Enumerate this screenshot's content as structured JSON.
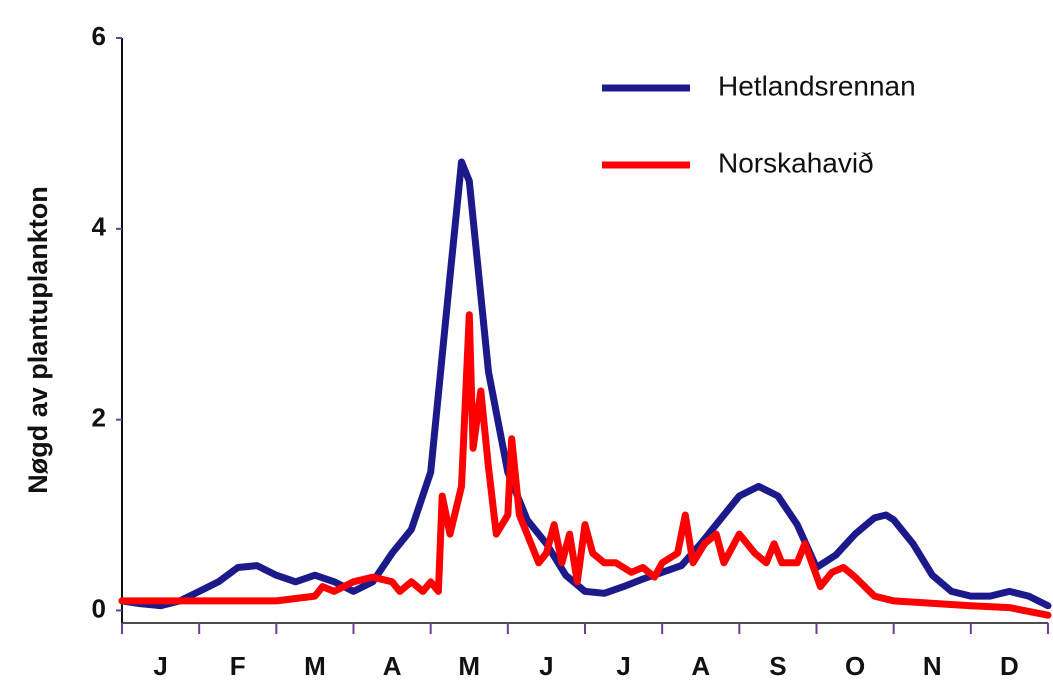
{
  "chart_data": {
    "type": "line",
    "y_label": "Nøgd av plantuplankton",
    "categories": [
      "J",
      "F",
      "M",
      "A",
      "M",
      "J",
      "J",
      "A",
      "S",
      "O",
      "N",
      "D"
    ],
    "xlim": [
      0,
      12
    ],
    "ylim": [
      -0.1,
      6
    ],
    "yticks": [
      0,
      2,
      4,
      6
    ],
    "legend": "upper right",
    "series": [
      {
        "name": "Hetlandsrennan",
        "color": "#1c1a8a",
        "x": [
          0,
          0.25,
          0.5,
          0.75,
          1,
          1.25,
          1.5,
          1.75,
          2,
          2.25,
          2.5,
          2.75,
          3,
          3.25,
          3.5,
          3.75,
          4,
          4.25,
          4.4,
          4.5,
          4.75,
          5,
          5.25,
          5.5,
          5.75,
          6,
          6.25,
          6.5,
          6.75,
          7,
          7.25,
          7.5,
          7.75,
          8,
          8.25,
          8.5,
          8.75,
          9,
          9.25,
          9.5,
          9.75,
          9.9,
          10,
          10.25,
          10.5,
          10.75,
          11,
          11.25,
          11.5,
          11.75,
          12
        ],
        "values": [
          0.1,
          0.07,
          0.05,
          0.1,
          0.2,
          0.3,
          0.45,
          0.47,
          0.37,
          0.3,
          0.37,
          0.3,
          0.2,
          0.3,
          0.6,
          0.85,
          1.45,
          3.5,
          4.7,
          4.5,
          2.5,
          1.45,
          0.95,
          0.7,
          0.37,
          0.2,
          0.18,
          0.25,
          0.33,
          0.4,
          0.47,
          0.7,
          0.95,
          1.2,
          1.3,
          1.2,
          0.9,
          0.45,
          0.58,
          0.8,
          0.97,
          1.0,
          0.95,
          0.7,
          0.37,
          0.2,
          0.15,
          0.15,
          0.2,
          0.15,
          0.05
        ]
      },
      {
        "name": "Norskahavið",
        "color": "#ff0000",
        "x": [
          0,
          1,
          2,
          2.5,
          2.6,
          2.75,
          3,
          3.25,
          3.5,
          3.6,
          3.75,
          3.9,
          4,
          4.1,
          4.15,
          4.25,
          4.4,
          4.5,
          4.55,
          4.65,
          4.75,
          4.85,
          5,
          5.05,
          5.15,
          5.3,
          5.4,
          5.5,
          5.6,
          5.7,
          5.8,
          5.9,
          6,
          6.1,
          6.25,
          6.4,
          6.6,
          6.75,
          6.9,
          7,
          7.2,
          7.3,
          7.4,
          7.55,
          7.7,
          7.8,
          8,
          8.2,
          8.35,
          8.45,
          8.55,
          8.75,
          8.85,
          9.05,
          9.2,
          9.35,
          9.5,
          9.75,
          10,
          11,
          11.5,
          12
        ],
        "values": [
          0.1,
          0.1,
          0.1,
          0.15,
          0.25,
          0.2,
          0.3,
          0.35,
          0.3,
          0.2,
          0.3,
          0.2,
          0.3,
          0.2,
          1.2,
          0.8,
          1.3,
          3.1,
          1.7,
          2.3,
          1.5,
          0.8,
          1.0,
          1.8,
          1.0,
          0.7,
          0.5,
          0.6,
          0.9,
          0.5,
          0.8,
          0.3,
          0.9,
          0.6,
          0.5,
          0.5,
          0.4,
          0.45,
          0.35,
          0.5,
          0.6,
          1.0,
          0.5,
          0.7,
          0.8,
          0.5,
          0.8,
          0.6,
          0.5,
          0.7,
          0.5,
          0.5,
          0.7,
          0.25,
          0.4,
          0.45,
          0.35,
          0.15,
          0.1,
          0.05,
          0.03,
          -0.05
        ]
      }
    ]
  }
}
